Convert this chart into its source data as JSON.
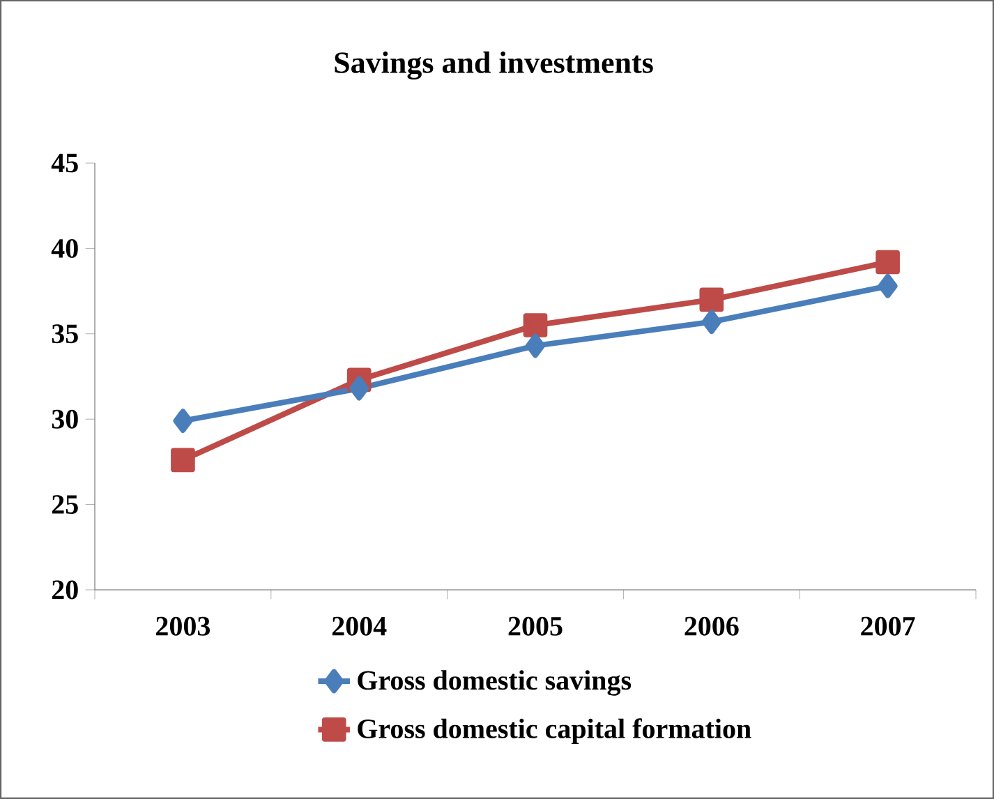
{
  "chart_data": {
    "type": "line",
    "title": "Savings and investments",
    "categories": [
      "2003",
      "2004",
      "2005",
      "2006",
      "2007"
    ],
    "series": [
      {
        "name": "Gross domestic savings",
        "color": "#4a7ebb",
        "marker": "diamond",
        "values": [
          29.9,
          31.8,
          34.3,
          35.7,
          37.8
        ]
      },
      {
        "name": "Gross domestic capital formation",
        "color": "#be4b48",
        "marker": "square",
        "values": [
          27.6,
          32.3,
          35.5,
          37.0,
          39.2
        ]
      }
    ],
    "ylim": [
      20,
      45
    ],
    "yticks": [
      20,
      25,
      30,
      35,
      40,
      45
    ],
    "grid": false,
    "legend": "bottom",
    "line_style": "solid"
  }
}
